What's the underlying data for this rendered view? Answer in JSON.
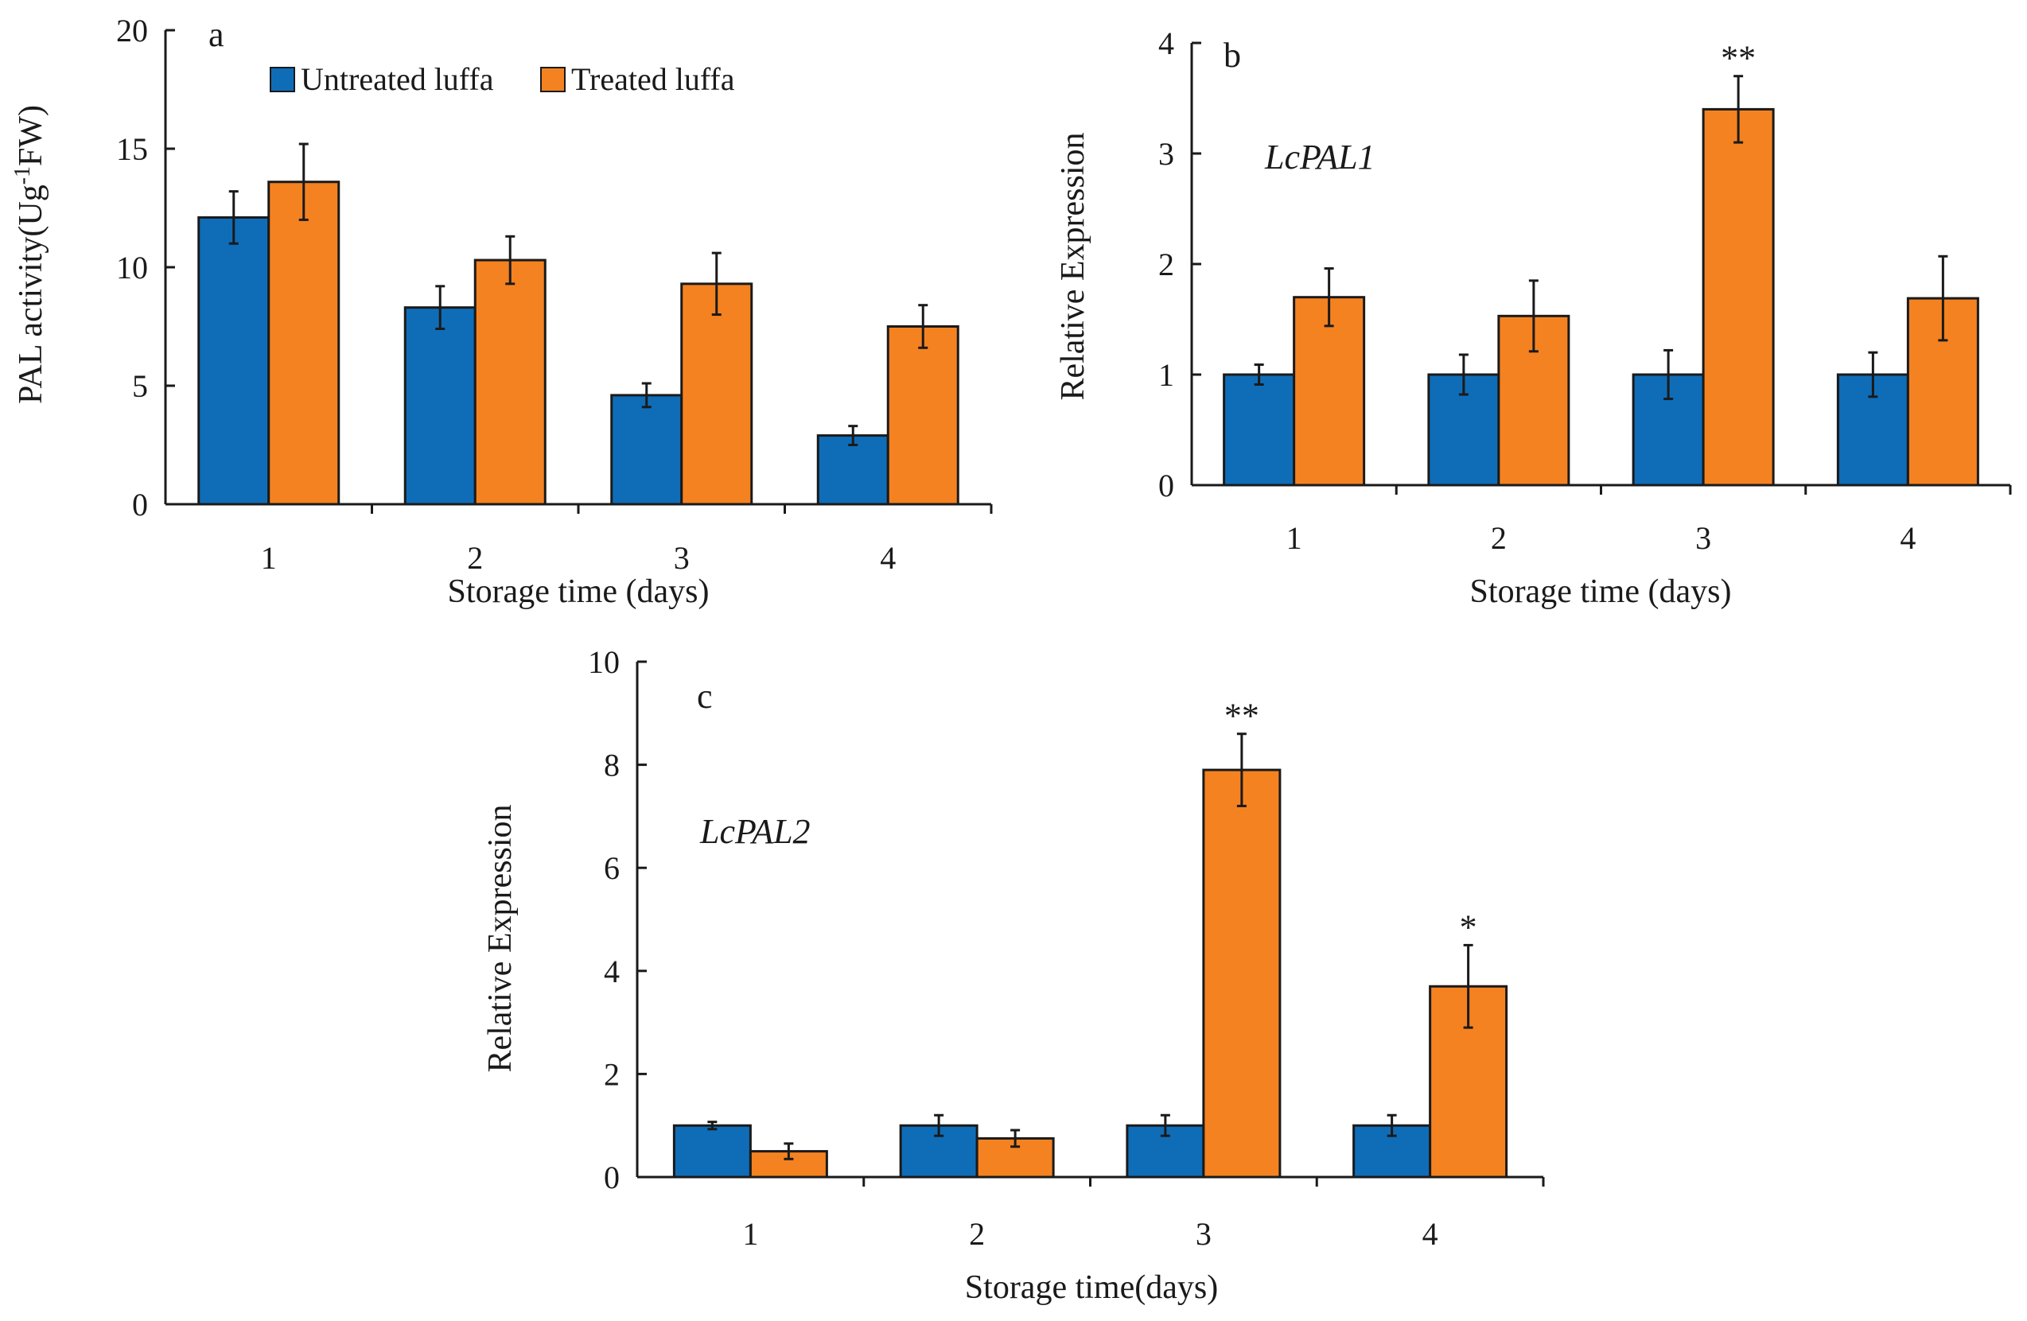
{
  "colors": {
    "untreated": "#0f6db8",
    "treated": "#f58220",
    "axis": "#1a1a1a"
  },
  "legend": {
    "untreated": "Untreated luffa",
    "treated": "Treated luffa"
  },
  "chart_data": [
    {
      "panel": "a",
      "type": "bar",
      "gene_label": "",
      "title": "",
      "xlabel": "Storage time (days)",
      "ylabel": "PAL activity(Ug-1FW)",
      "ylabel_main": "PAL activity(Ug",
      "ylabel_sup": "-1",
      "ylabel_tail": "FW)",
      "ylim": [
        0,
        20
      ],
      "yticks": [
        0,
        5,
        10,
        15,
        20
      ],
      "categories": [
        "1",
        "2",
        "3",
        "4"
      ],
      "series": [
        {
          "name": "Untreated luffa",
          "values": [
            12.1,
            8.3,
            4.6,
            2.9
          ],
          "errors": [
            1.1,
            0.9,
            0.5,
            0.4
          ]
        },
        {
          "name": "Treated luffa",
          "values": [
            13.6,
            10.3,
            9.3,
            7.5
          ],
          "errors": [
            1.6,
            1.0,
            1.3,
            0.9
          ]
        }
      ],
      "significance": [
        "",
        "",
        "",
        ""
      ]
    },
    {
      "panel": "b",
      "type": "bar",
      "gene_label": "LcPAL1",
      "title": "",
      "xlabel": "Storage time (days)",
      "ylabel": "Relative Expression",
      "ylim": [
        0,
        4
      ],
      "yticks": [
        0,
        1,
        2,
        3,
        4
      ],
      "categories": [
        "1",
        "2",
        "3",
        "4"
      ],
      "series": [
        {
          "name": "Untreated luffa",
          "values": [
            1.0,
            1.0,
            1.0,
            1.0
          ],
          "errors": [
            0.09,
            0.18,
            0.22,
            0.2
          ]
        },
        {
          "name": "Treated luffa",
          "values": [
            1.7,
            1.53,
            3.4,
            1.69
          ],
          "errors": [
            0.26,
            0.32,
            0.3,
            0.38
          ]
        }
      ],
      "significance": [
        "",
        "",
        "**",
        ""
      ]
    },
    {
      "panel": "c",
      "type": "bar",
      "gene_label": "LcPAL2",
      "title": "",
      "xlabel": "Storage time(days)",
      "ylabel": "Relative Expression",
      "ylim": [
        0,
        10
      ],
      "yticks": [
        0,
        2,
        4,
        6,
        8,
        10
      ],
      "categories": [
        "1",
        "2",
        "3",
        "4"
      ],
      "series": [
        {
          "name": "Untreated luffa",
          "values": [
            1.0,
            1.0,
            1.0,
            1.0
          ],
          "errors": [
            0.07,
            0.2,
            0.2,
            0.2
          ]
        },
        {
          "name": "Treated luffa",
          "values": [
            0.5,
            0.75,
            7.9,
            3.7
          ],
          "errors": [
            0.15,
            0.16,
            0.7,
            0.8
          ]
        }
      ],
      "significance": [
        "",
        "",
        "**",
        "*"
      ]
    }
  ]
}
